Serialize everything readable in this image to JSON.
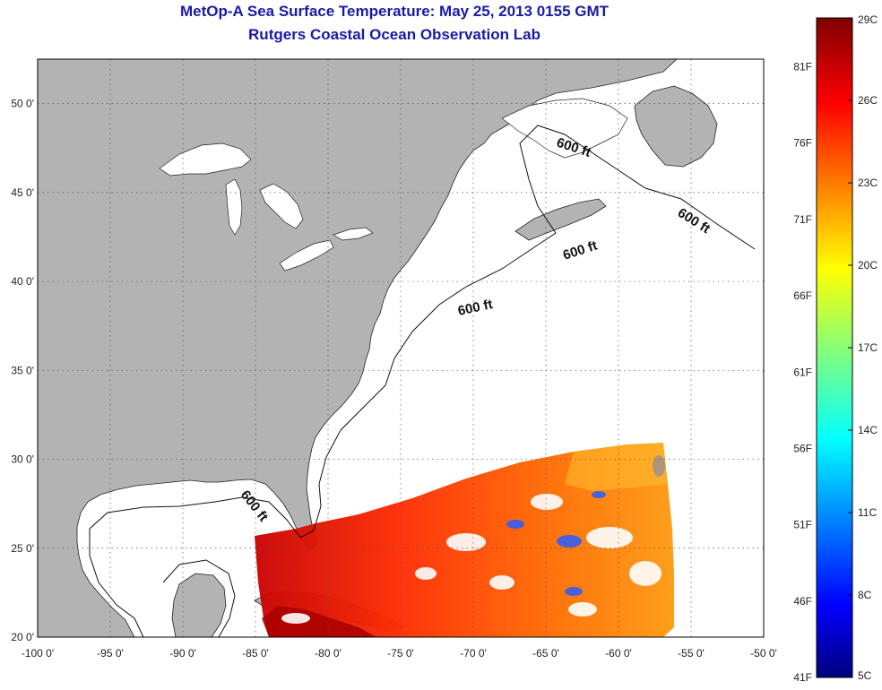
{
  "title": {
    "line1": "MetOp-A Sea Surface Temperature:  May 25, 2013 0155 GMT",
    "line2": "Rutgers Coastal Ocean Observation Lab"
  },
  "axes": {
    "lon_labels": [
      "-100 0'",
      "-95 0'",
      "-90 0'",
      "-85 0'",
      "-80 0'",
      "-75 0'",
      "-70 0'",
      "-65 0'",
      "-60 0'",
      "-55 0'",
      "-50 0'"
    ],
    "lat_labels": [
      "20 0'",
      "25 0'",
      "30 0'",
      "35 0'",
      "40 0'",
      "45 0'",
      "50 0'"
    ],
    "lon_values": [
      -100,
      -95,
      -90,
      -85,
      -80,
      -75,
      -70,
      -65,
      -60,
      -55,
      -50
    ],
    "lat_values": [
      20,
      25,
      30,
      35,
      40,
      45,
      50
    ],
    "lon_range": [
      -100,
      -50
    ],
    "lat_range": [
      20,
      52.5
    ],
    "grid": "dotted"
  },
  "colorbar": {
    "celsius_labels": [
      "29C",
      "26C",
      "23C",
      "20C",
      "17C",
      "14C",
      "11C",
      "8C",
      "5C"
    ],
    "fahrenheit_labels": [
      "81F",
      "76F",
      "71F",
      "66F",
      "61F",
      "56F",
      "51F",
      "46F",
      "41F"
    ],
    "celsius_range": [
      5,
      29
    ],
    "colormap": "jet"
  },
  "isobath_labels": [
    "600 ft",
    "600 ft",
    "600 ft",
    "600 ft",
    "600 ft"
  ],
  "colors": {
    "title": "#1a1aa6",
    "land": "#b3b3b3",
    "ocean": "#ffffff"
  }
}
